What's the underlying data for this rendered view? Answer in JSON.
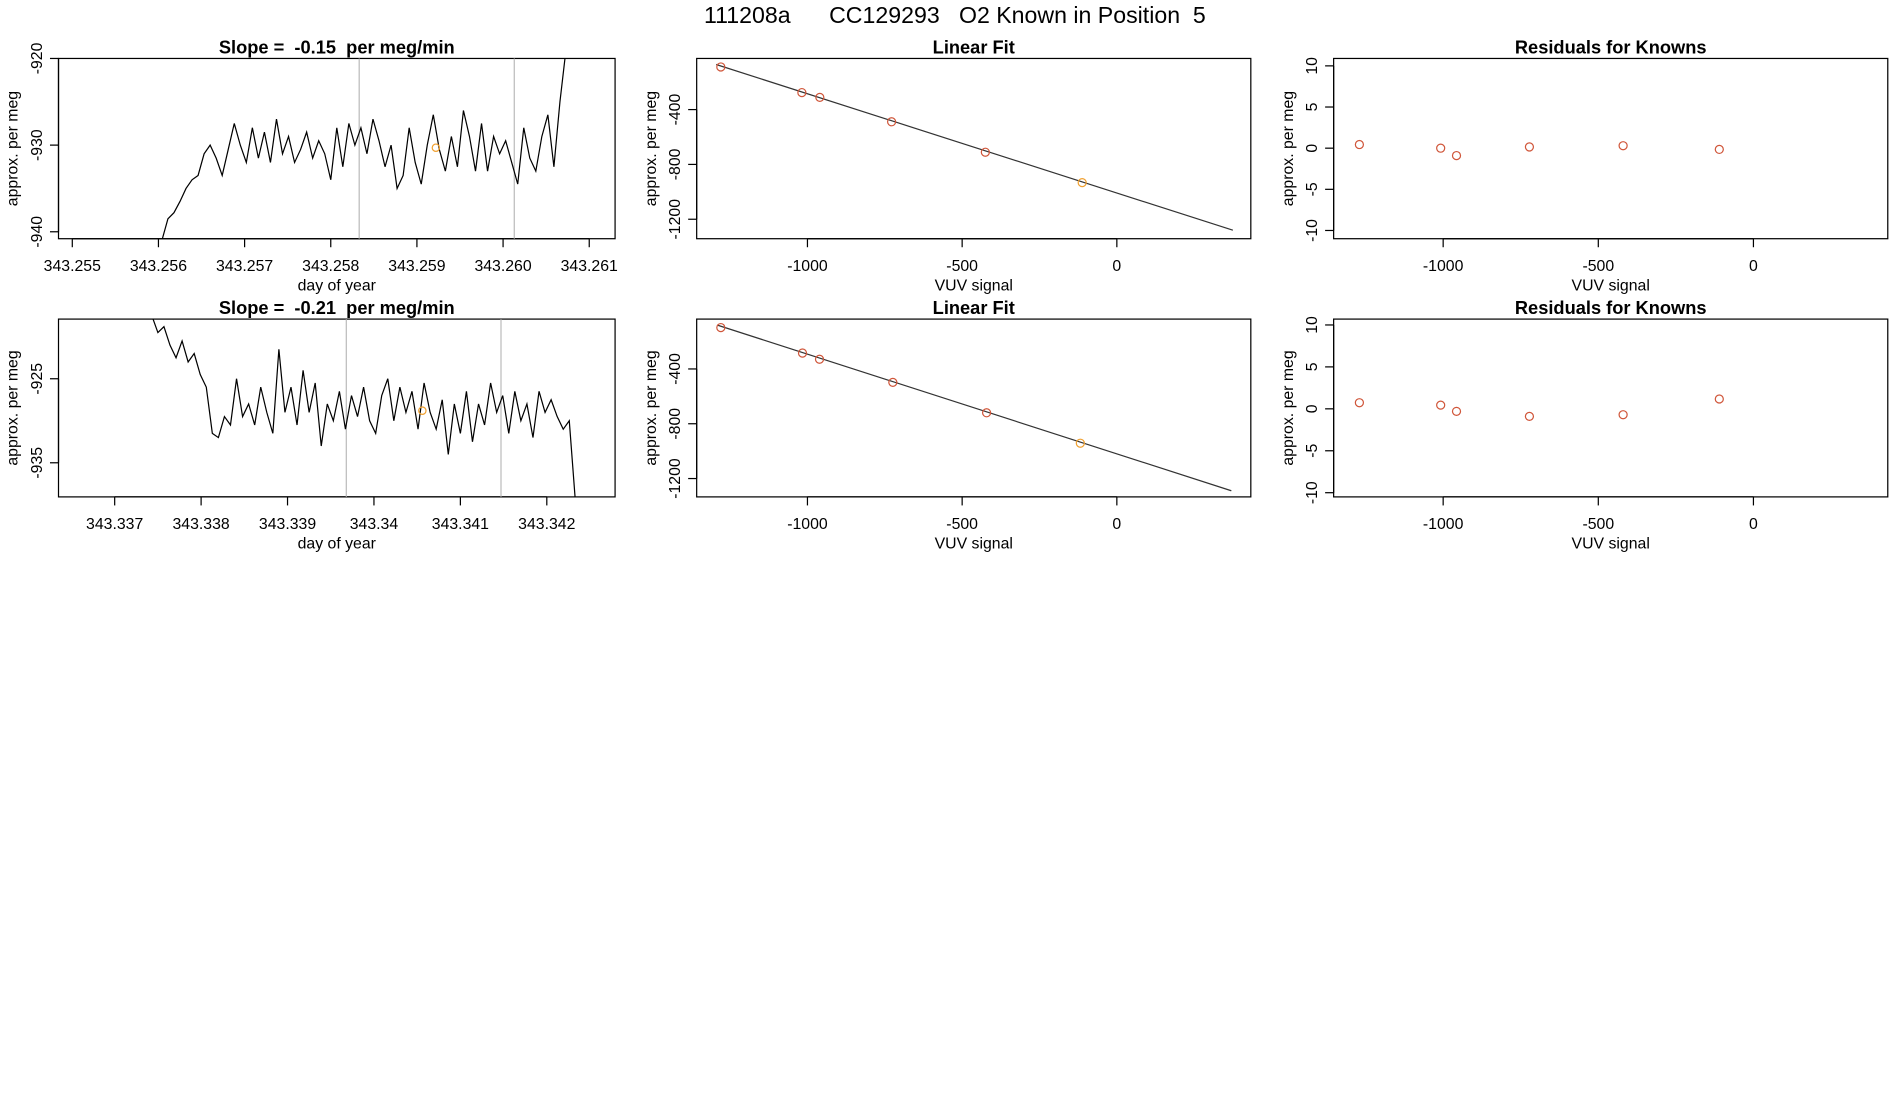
{
  "title": "111208a      CC129293   O2 Known in Position  5",
  "chart_data": [
    {
      "type": "line",
      "title": "Slope =  -0.15  per meg/min",
      "xlabel": "day of year",
      "ylabel": "approx. per meg",
      "color": "#000000",
      "x": [
        343.25604,
        343.25611,
        343.25618,
        343.25625,
        343.25632,
        343.25639,
        343.25646,
        343.25653,
        343.2566,
        343.25667,
        343.25674,
        343.25681,
        343.25688,
        343.25695,
        343.25702,
        343.25709,
        343.25716,
        343.25723,
        343.2573,
        343.25737,
        343.25744,
        343.25751,
        343.25758,
        343.25765,
        343.25772,
        343.25779,
        343.25786,
        343.25793,
        343.258,
        343.25807,
        343.25814,
        343.25821,
        343.25828,
        343.25835,
        343.25842,
        343.25849,
        343.25856,
        343.25863,
        343.2587,
        343.25877,
        343.25884,
        343.25891,
        343.25898,
        343.25905,
        343.25912,
        343.25919,
        343.25926,
        343.25933,
        343.2594,
        343.25947,
        343.25954,
        343.25961,
        343.25968,
        343.25975,
        343.25982,
        343.25989,
        343.25996,
        343.26003,
        343.2601,
        343.26017,
        343.26024,
        343.26031,
        343.26038,
        343.26045,
        343.26052,
        343.26059,
        343.26066,
        343.26073
      ],
      "values": [
        -941.0,
        -938.5,
        -937.8,
        -936.5,
        -935.0,
        -934.0,
        -933.5,
        -931.0,
        -930.0,
        -931.5,
        -933.5,
        -930.5,
        -927.5,
        -930.0,
        -932.0,
        -928.0,
        -931.5,
        -928.5,
        -932.0,
        -927.0,
        -931.0,
        -929.0,
        -932.0,
        -930.5,
        -928.5,
        -931.5,
        -929.5,
        -931.0,
        -934.0,
        -928.0,
        -932.5,
        -927.5,
        -930.0,
        -928.0,
        -931.0,
        -927.0,
        -929.5,
        -932.5,
        -930.0,
        -935.0,
        -933.5,
        -928.0,
        -932.0,
        -934.5,
        -930.0,
        -926.5,
        -930.5,
        -933.0,
        -929.0,
        -932.5,
        -926.0,
        -929.0,
        -933.0,
        -927.5,
        -933.0,
        -929.0,
        -931.0,
        -929.5,
        -932.0,
        -934.5,
        -928.0,
        -931.5,
        -933.0,
        -929.0,
        -926.5,
        -932.5,
        -925.0,
        -919.0
      ],
      "xlim": [
        343.25484,
        343.2613
      ],
      "ylim": [
        -940.8,
        -920
      ],
      "xticks": [
        343.255,
        343.256,
        343.257,
        343.258,
        343.259,
        {
          "value": 343.26,
          "label": "343.260"
        },
        343.261
      ],
      "yticks": [
        -920,
        -930,
        -940
      ],
      "vlines": [
        343.25833,
        343.26013
      ],
      "vline_color": "#bbbbbb",
      "highlight": {
        "x": 343.25922,
        "y": -930.3,
        "color": "#f0a030"
      }
    },
    {
      "type": "scatter",
      "title": "Linear Fit",
      "xlabel": "VUV signal",
      "ylabel": "approx. per meg",
      "x": [
        -1280,
        -1018,
        -960,
        -728,
        -425,
        -112
      ],
      "values": [
        -89,
        -276,
        -311,
        -489,
        -711,
        -933
      ],
      "colors": [
        "#d0563a",
        "#d0563a",
        "#d0563a",
        "#d0563a",
        "#d0563a",
        "#f0a030"
      ],
      "fit": {
        "x": [
          -1295,
          375
        ],
        "y": [
          -71,
          -1280
        ],
        "color": "#333333"
      },
      "xlim": [
        -1358,
        433
      ],
      "ylim": [
        -1342,
        -27
      ],
      "xticks": [
        -1000,
        -500,
        0
      ],
      "yticks": [
        -400,
        -800,
        -1200
      ]
    },
    {
      "type": "scatter",
      "title": "Residuals for Knowns",
      "xlabel": "VUV signal",
      "ylabel": "approx. per meg",
      "x": [
        -1270,
        -1008,
        -957,
        -722,
        -420,
        -110
      ],
      "values": [
        0.44,
        0,
        -0.9,
        0.15,
        0.3,
        -0.15
      ],
      "color": "#d0563a",
      "xlim": [
        -1353,
        433
      ],
      "ylim": [
        -11,
        10.9
      ],
      "xticks": [
        -1000,
        -500,
        0
      ],
      "yticks": [
        10,
        5,
        0,
        -5,
        -10
      ]
    },
    {
      "type": "line",
      "title": "Slope =  -0.21  per meg/min",
      "xlabel": "day of year",
      "ylabel": "approx. per meg",
      "color": "#000000",
      "x": [
        343.33743,
        343.3375,
        343.33757,
        343.33764,
        343.33771,
        343.33778,
        343.33785,
        343.33792,
        343.33799,
        343.33806,
        343.33813,
        343.3382,
        343.33827,
        343.33834,
        343.33841,
        343.33848,
        343.33855,
        343.33862,
        343.33869,
        343.33876,
        343.33883,
        343.3389,
        343.33897,
        343.33904,
        343.33911,
        343.33918,
        343.33925,
        343.33932,
        343.33939,
        343.33946,
        343.33953,
        343.3396,
        343.33967,
        343.33974,
        343.33981,
        343.33988,
        343.33995,
        343.34002,
        343.34009,
        343.34016,
        343.34023,
        343.3403,
        343.34037,
        343.34044,
        343.34051,
        343.34058,
        343.34065,
        343.34072,
        343.34079,
        343.34086,
        343.34093,
        343.341,
        343.34107,
        343.34114,
        343.34121,
        343.34128,
        343.34135,
        343.34142,
        343.34149,
        343.34156,
        343.34163,
        343.3417,
        343.34177,
        343.34184,
        343.34191,
        343.34198,
        343.34205,
        343.34212,
        343.34219,
        343.34226,
        343.34233
      ],
      "values": [
        -917.5,
        -919.5,
        -918.8,
        -921.0,
        -922.5,
        -920.5,
        -923.0,
        -922.0,
        -924.5,
        -926.0,
        -931.5,
        -932.0,
        -929.5,
        -930.5,
        -925.0,
        -929.5,
        -928.0,
        -930.5,
        -926.0,
        -929.0,
        -931.5,
        -921.5,
        -929.0,
        -926.0,
        -930.5,
        -924.0,
        -929.0,
        -925.5,
        -933.0,
        -928.0,
        -930.0,
        -926.5,
        -931.0,
        -927.0,
        -929.5,
        -926.0,
        -930.0,
        -931.5,
        -927.0,
        -925.0,
        -930.0,
        -926.0,
        -929.0,
        -926.5,
        -931.0,
        -925.5,
        -929.0,
        -931.0,
        -927.5,
        -934.0,
        -928.0,
        -931.5,
        -926.5,
        -932.5,
        -928.0,
        -930.5,
        -925.5,
        -929.0,
        -927.0,
        -931.5,
        -926.5,
        -930.0,
        -928.0,
        -932.0,
        -926.5,
        -929.0,
        -927.5,
        -929.5,
        -931.0,
        -930.0,
        -939.5
      ],
      "xlim": [
        343.33635,
        343.34279
      ],
      "ylim": [
        -939.06,
        -917.9
      ],
      "xticks": [
        343.337,
        343.338,
        343.339,
        343.34,
        343.341,
        343.342
      ],
      "yticks": [
        -925,
        -935
      ],
      "vlines": [
        343.33968,
        343.34147
      ],
      "vline_color": "#bbbbbb",
      "highlight": {
        "x": 343.34056,
        "y": -928.8,
        "color": "#f0a030"
      }
    },
    {
      "type": "scatter",
      "title": "Linear Fit",
      "xlabel": "VUV signal",
      "ylabel": "approx. per meg",
      "x": [
        -1280,
        -1016,
        -961,
        -724,
        -421,
        -118
      ],
      "values": [
        -98,
        -284,
        -329,
        -498,
        -720,
        -942
      ],
      "colors": [
        "#d0563a",
        "#d0563a",
        "#d0563a",
        "#d0563a",
        "#d0563a",
        "#f0a030"
      ],
      "fit": {
        "x": [
          -1291,
          370
        ],
        "y": [
          -80,
          -1289
        ],
        "color": "#333333"
      },
      "xlim": [
        -1358,
        433
      ],
      "ylim": [
        -1334,
        -36
      ],
      "xticks": [
        -1000,
        -500,
        0
      ],
      "yticks": [
        -400,
        -800,
        -1200
      ]
    },
    {
      "type": "scatter",
      "title": "Residuals for Knowns",
      "xlabel": "VUV signal",
      "ylabel": "approx. per meg",
      "x": [
        -1270,
        -1008,
        -957,
        -722,
        -420,
        -110
      ],
      "values": [
        0.73,
        0.44,
        -0.3,
        -0.9,
        -0.7,
        1.17
      ],
      "color": "#d0563a",
      "xlim": [
        -1353,
        433
      ],
      "ylim": [
        -10.5,
        10.7
      ],
      "xticks": [
        -1000,
        -500,
        0
      ],
      "yticks": [
        10,
        5,
        0,
        -5,
        -10
      ]
    }
  ]
}
